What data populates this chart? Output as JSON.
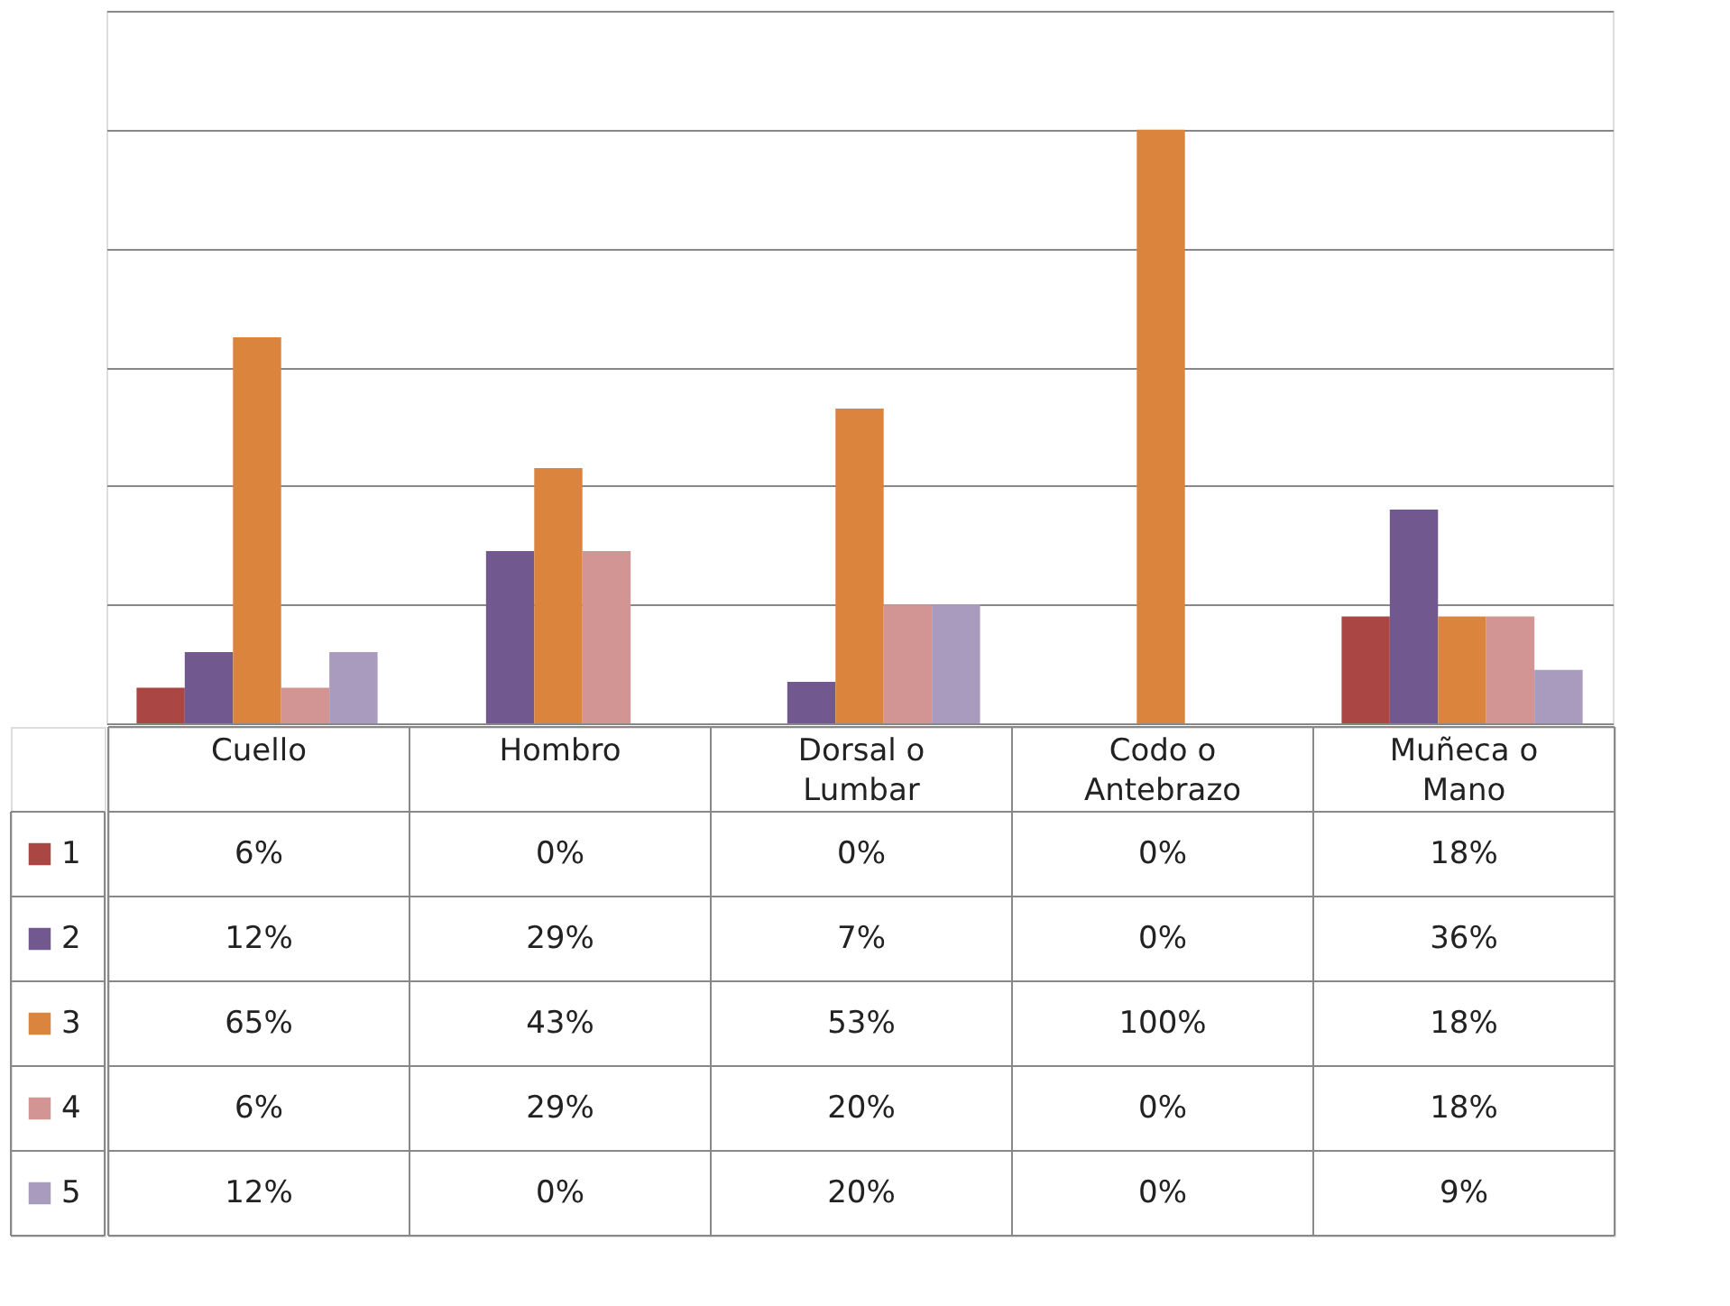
{
  "chart_data": {
    "type": "bar",
    "categories": [
      "Cuello",
      "Hombro",
      "Dorsal o Lumbar",
      "Codo o Antebrazo",
      "Muñeca o Mano"
    ],
    "series": [
      {
        "name": "1",
        "color": "#aa4643",
        "values": [
          6,
          0,
          0,
          0,
          18
        ],
        "value_labels": [
          "6%",
          "0%",
          "0%",
          "0%",
          "18%"
        ]
      },
      {
        "name": "2",
        "color": "#71588f",
        "values": [
          12,
          29,
          7,
          0,
          36
        ],
        "value_labels": [
          "12%",
          "29%",
          "7%",
          "0%",
          "36%"
        ]
      },
      {
        "name": "3",
        "color": "#db843d",
        "values": [
          65,
          43,
          53,
          100,
          18
        ],
        "value_labels": [
          "65%",
          "43%",
          "53%",
          "100%",
          "18%"
        ]
      },
      {
        "name": "4",
        "color": "#d39594",
        "values": [
          6,
          29,
          20,
          0,
          18
        ],
        "value_labels": [
          "6%",
          "29%",
          "20%",
          "0%",
          "18%"
        ]
      },
      {
        "name": "5",
        "color": "#a99bbd",
        "values": [
          12,
          0,
          20,
          0,
          9
        ],
        "value_labels": [
          "12%",
          "0%",
          "20%",
          "0%",
          "9%"
        ]
      }
    ],
    "ylim": [
      0,
      120
    ],
    "yticks": [
      {
        "value": 0,
        "label": null
      },
      {
        "value": 20,
        "label": null
      },
      {
        "value": 40,
        "label": null
      },
      {
        "value": 60,
        "label": null
      },
      {
        "value": 80,
        "label": null
      },
      {
        "value": 100,
        "label": null
      },
      {
        "value": 120,
        "label": null
      }
    ],
    "grid": "y",
    "legend": "bottom",
    "tick_labels": "x"
  }
}
